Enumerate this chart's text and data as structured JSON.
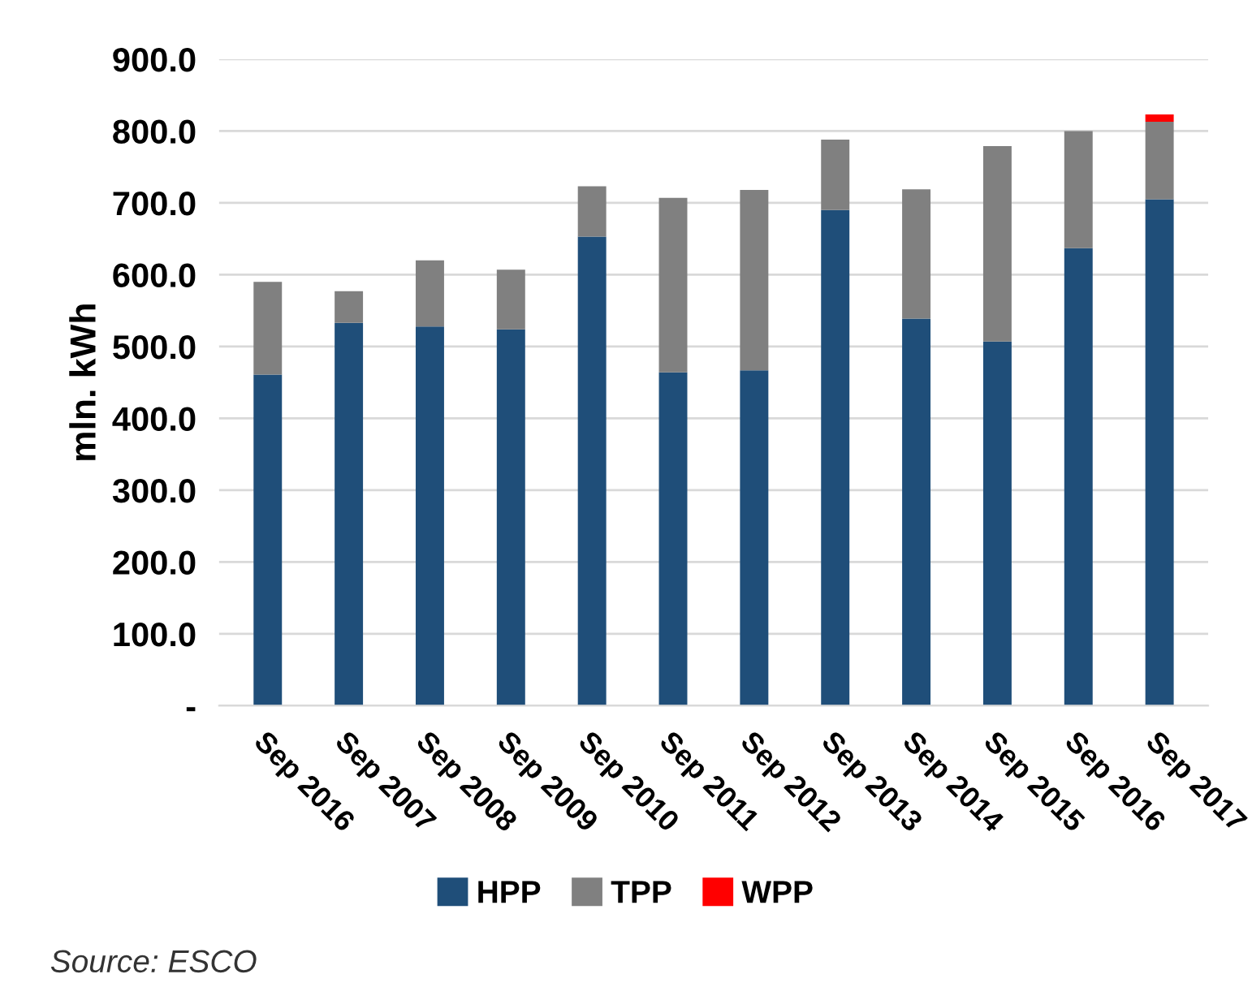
{
  "chart_data": {
    "type": "bar",
    "stacked": true,
    "ylabel": "mln. kWh",
    "categories": [
      "Sep 2016",
      "Sep 2007",
      "Sep 2008",
      "Sep 2009",
      "Sep 2010",
      "Sep 2011",
      "Sep 2012",
      "Sep 2013",
      "Sep 2014",
      "Sep 2015",
      "Sep 2016",
      "Sep 2017"
    ],
    "series": [
      {
        "name": "HPP",
        "color": "#1f4e79",
        "values": [
          461,
          533,
          528,
          524,
          653,
          464,
          467,
          690,
          539,
          507,
          637,
          705
        ]
      },
      {
        "name": "TPP",
        "color": "#808080",
        "values": [
          129,
          44,
          92,
          83,
          70,
          243,
          251,
          98,
          180,
          272,
          163,
          108
        ]
      },
      {
        "name": "WPP",
        "color": "#ff0000",
        "values": [
          null,
          null,
          null,
          null,
          null,
          null,
          null,
          null,
          null,
          null,
          null,
          10
        ]
      }
    ],
    "ylim": [
      0,
      900
    ],
    "yticks": [
      {
        "value": 0,
        "label": "-"
      },
      {
        "value": 100,
        "label": "100.0"
      },
      {
        "value": 200,
        "label": "200.0"
      },
      {
        "value": 300,
        "label": "300.0"
      },
      {
        "value": 400,
        "label": "400.0"
      },
      {
        "value": 500,
        "label": "500.0"
      },
      {
        "value": 600,
        "label": "600.0"
      },
      {
        "value": 700,
        "label": "700.0"
      },
      {
        "value": 800,
        "label": "800.0"
      },
      {
        "value": 900,
        "label": "900.0"
      }
    ],
    "grid": "y",
    "legend": "bottom",
    "annotations": [
      "Source: ESCO"
    ]
  }
}
